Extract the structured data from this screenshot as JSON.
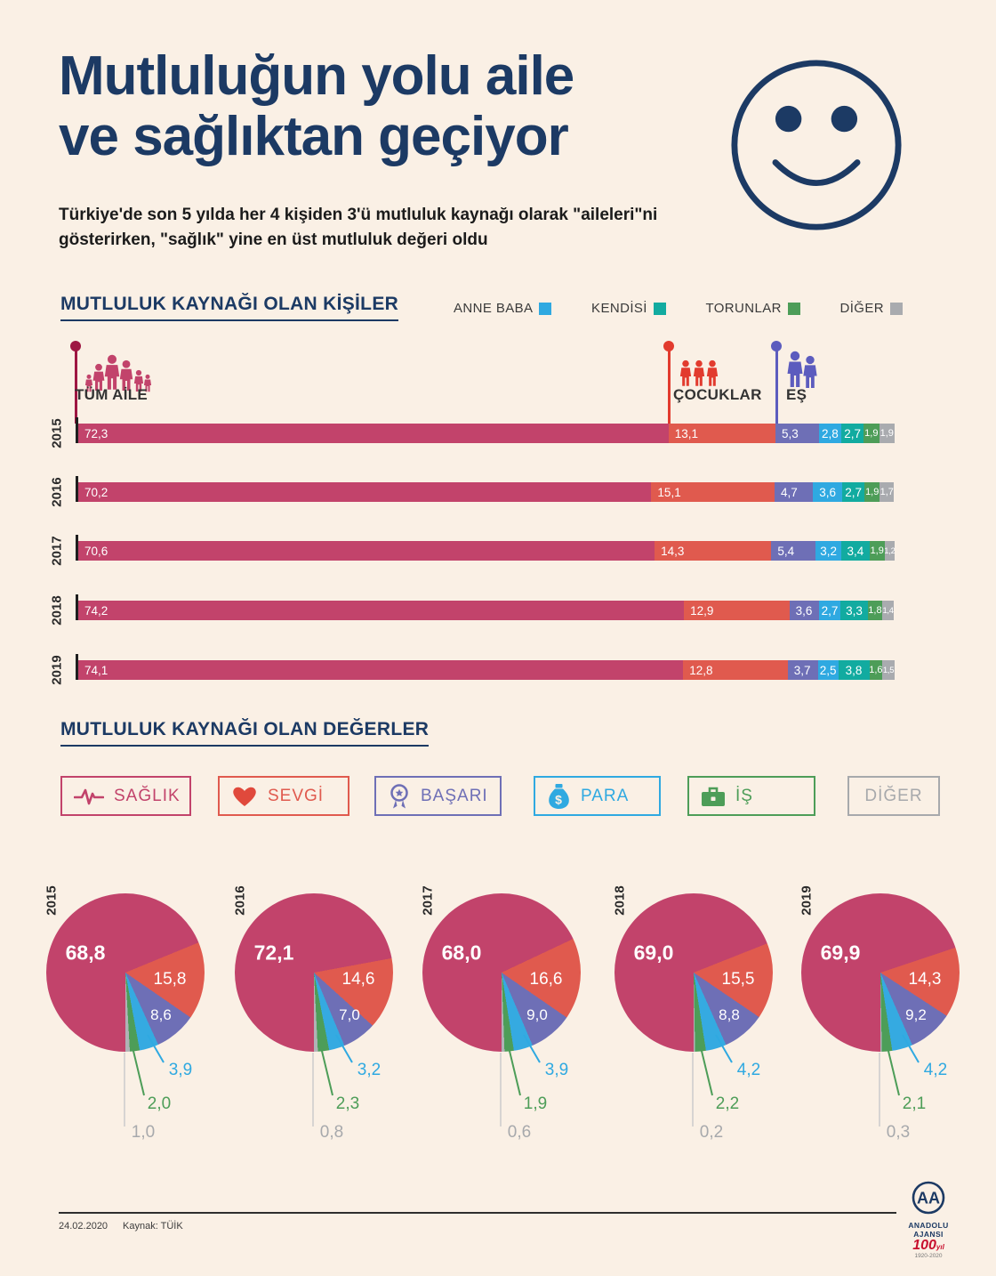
{
  "header": {
    "title_line1": "Mutluluğun yolu aile",
    "title_line2": "ve sağlıktan geçiyor",
    "subtitle": "Türkiye'de son 5 yılda her 4 kişiden 3'ü mutluluk kaynağı olarak \"aileleri\"ni gösterirken, \"sağlık\" yine en üst mutluluk değeri oldu"
  },
  "colors": {
    "background": "#FAF0E5",
    "navy": "#1C3A64",
    "magenta": "#C2436B",
    "red": "#E05A4E",
    "purple": "#6E6FB6",
    "blue": "#2FA9E1",
    "teal": "#12ABA0",
    "green": "#4D9D58",
    "gray": "#A7A9AC"
  },
  "icons": [
    "smiley-face",
    "family-group",
    "children-group",
    "couple",
    "pulse-line",
    "heart",
    "medal",
    "money-bag",
    "briefcase"
  ],
  "chart_data": [
    {
      "type": "bar",
      "stacked": true,
      "title": "MUTLULUK KAYNAĞI OLAN KİŞİLER",
      "categories": [
        "2015",
        "2016",
        "2017",
        "2018",
        "2019"
      ],
      "xlim": [
        0,
        100
      ],
      "series": [
        {
          "name": "TÜM AİLE",
          "color": "#C2436B",
          "values": [
            72.3,
            70.2,
            70.6,
            74.2,
            74.1
          ]
        },
        {
          "name": "ÇOCUKLAR",
          "color": "#E05A4E",
          "values": [
            13.1,
            15.1,
            14.3,
            12.9,
            12.8
          ]
        },
        {
          "name": "EŞ",
          "color": "#6E6FB6",
          "values": [
            5.3,
            4.7,
            5.4,
            3.6,
            3.7
          ]
        },
        {
          "name": "ANNE BABA",
          "color": "#2FA9E1",
          "values": [
            2.8,
            3.6,
            3.2,
            2.7,
            2.5
          ]
        },
        {
          "name": "KENDİSİ",
          "color": "#12ABA0",
          "values": [
            2.7,
            2.7,
            3.4,
            3.3,
            3.8
          ]
        },
        {
          "name": "TORUNLAR",
          "color": "#4D9D58",
          "values": [
            1.9,
            1.9,
            1.9,
            1.8,
            1.6
          ]
        },
        {
          "name": "DİĞER",
          "color": "#A9ABAF",
          "values": [
            1.9,
            1.7,
            1.2,
            1.4,
            1.5
          ]
        }
      ]
    },
    {
      "type": "pie",
      "title": "MUTLULUK KAYNAĞI OLAN DEĞERLER",
      "labels": [
        "SAĞLIK",
        "SEVGİ",
        "BAŞARI",
        "PARA",
        "İŞ",
        "DİĞER"
      ],
      "colors": [
        "#C2436B",
        "#E05A4E",
        "#6E6FB6",
        "#35AAE1",
        "#4D9D58",
        "#B0B2B6"
      ],
      "pies": [
        {
          "year": "2015",
          "values": [
            68.8,
            15.8,
            8.6,
            3.9,
            2.0,
            1.0
          ]
        },
        {
          "year": "2016",
          "values": [
            72.1,
            14.6,
            7.0,
            3.2,
            2.3,
            0.8
          ]
        },
        {
          "year": "2017",
          "values": [
            68.0,
            16.6,
            9.0,
            3.9,
            1.9,
            0.6
          ]
        },
        {
          "year": "2018",
          "values": [
            69.0,
            15.5,
            8.8,
            4.2,
            2.2,
            0.2
          ]
        },
        {
          "year": "2019",
          "values": [
            69.9,
            14.3,
            9.2,
            4.2,
            2.1,
            0.3
          ]
        }
      ]
    }
  ],
  "footer": {
    "date": "24.02.2020",
    "source": "Kaynak: TÜİK",
    "agency": "ANADOLU AJANSI",
    "centennial": "100",
    "centennial_suffix": "yıl",
    "years": "1920-2020"
  }
}
